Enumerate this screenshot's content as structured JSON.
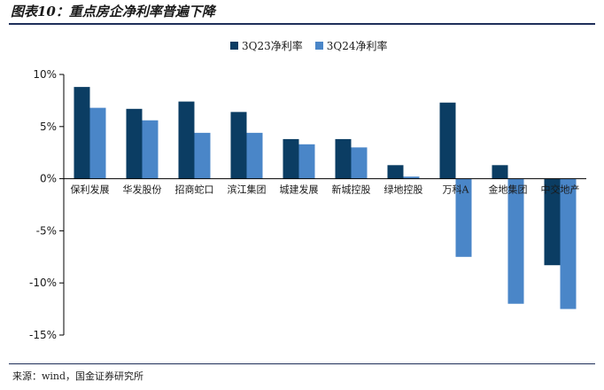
{
  "header": {
    "title": "图表10：重点房企净利率普遍下降"
  },
  "footer": {
    "source": "来源：wind，国金证券研究所"
  },
  "colors": {
    "series1": "#0b3d63",
    "series2": "#4a86c8",
    "axis": "#000000"
  },
  "chart_data": {
    "type": "bar",
    "categories": [
      "保利发展",
      "华发股份",
      "招商蛇口",
      "滨江集团",
      "城建发展",
      "新城控股",
      "绿地控股",
      "万科A",
      "金地集团",
      "中交地产"
    ],
    "series": [
      {
        "name": "3Q23净利率",
        "values": [
          8.8,
          6.7,
          7.4,
          6.4,
          3.8,
          3.8,
          1.3,
          7.3,
          1.3,
          -8.3
        ]
      },
      {
        "name": "3Q24净利率",
        "values": [
          6.8,
          5.6,
          4.4,
          4.4,
          3.3,
          3.0,
          0.2,
          -7.5,
          -12.0,
          -12.5
        ]
      }
    ],
    "ylim": [
      -15,
      10
    ],
    "yticks": [
      10,
      5,
      0,
      -5,
      -10,
      -15
    ],
    "ytick_labels": [
      "10%",
      "5%",
      "0%",
      "-5%",
      "-10%",
      "-15%"
    ],
    "legend_position": "top-center",
    "grid": false
  }
}
